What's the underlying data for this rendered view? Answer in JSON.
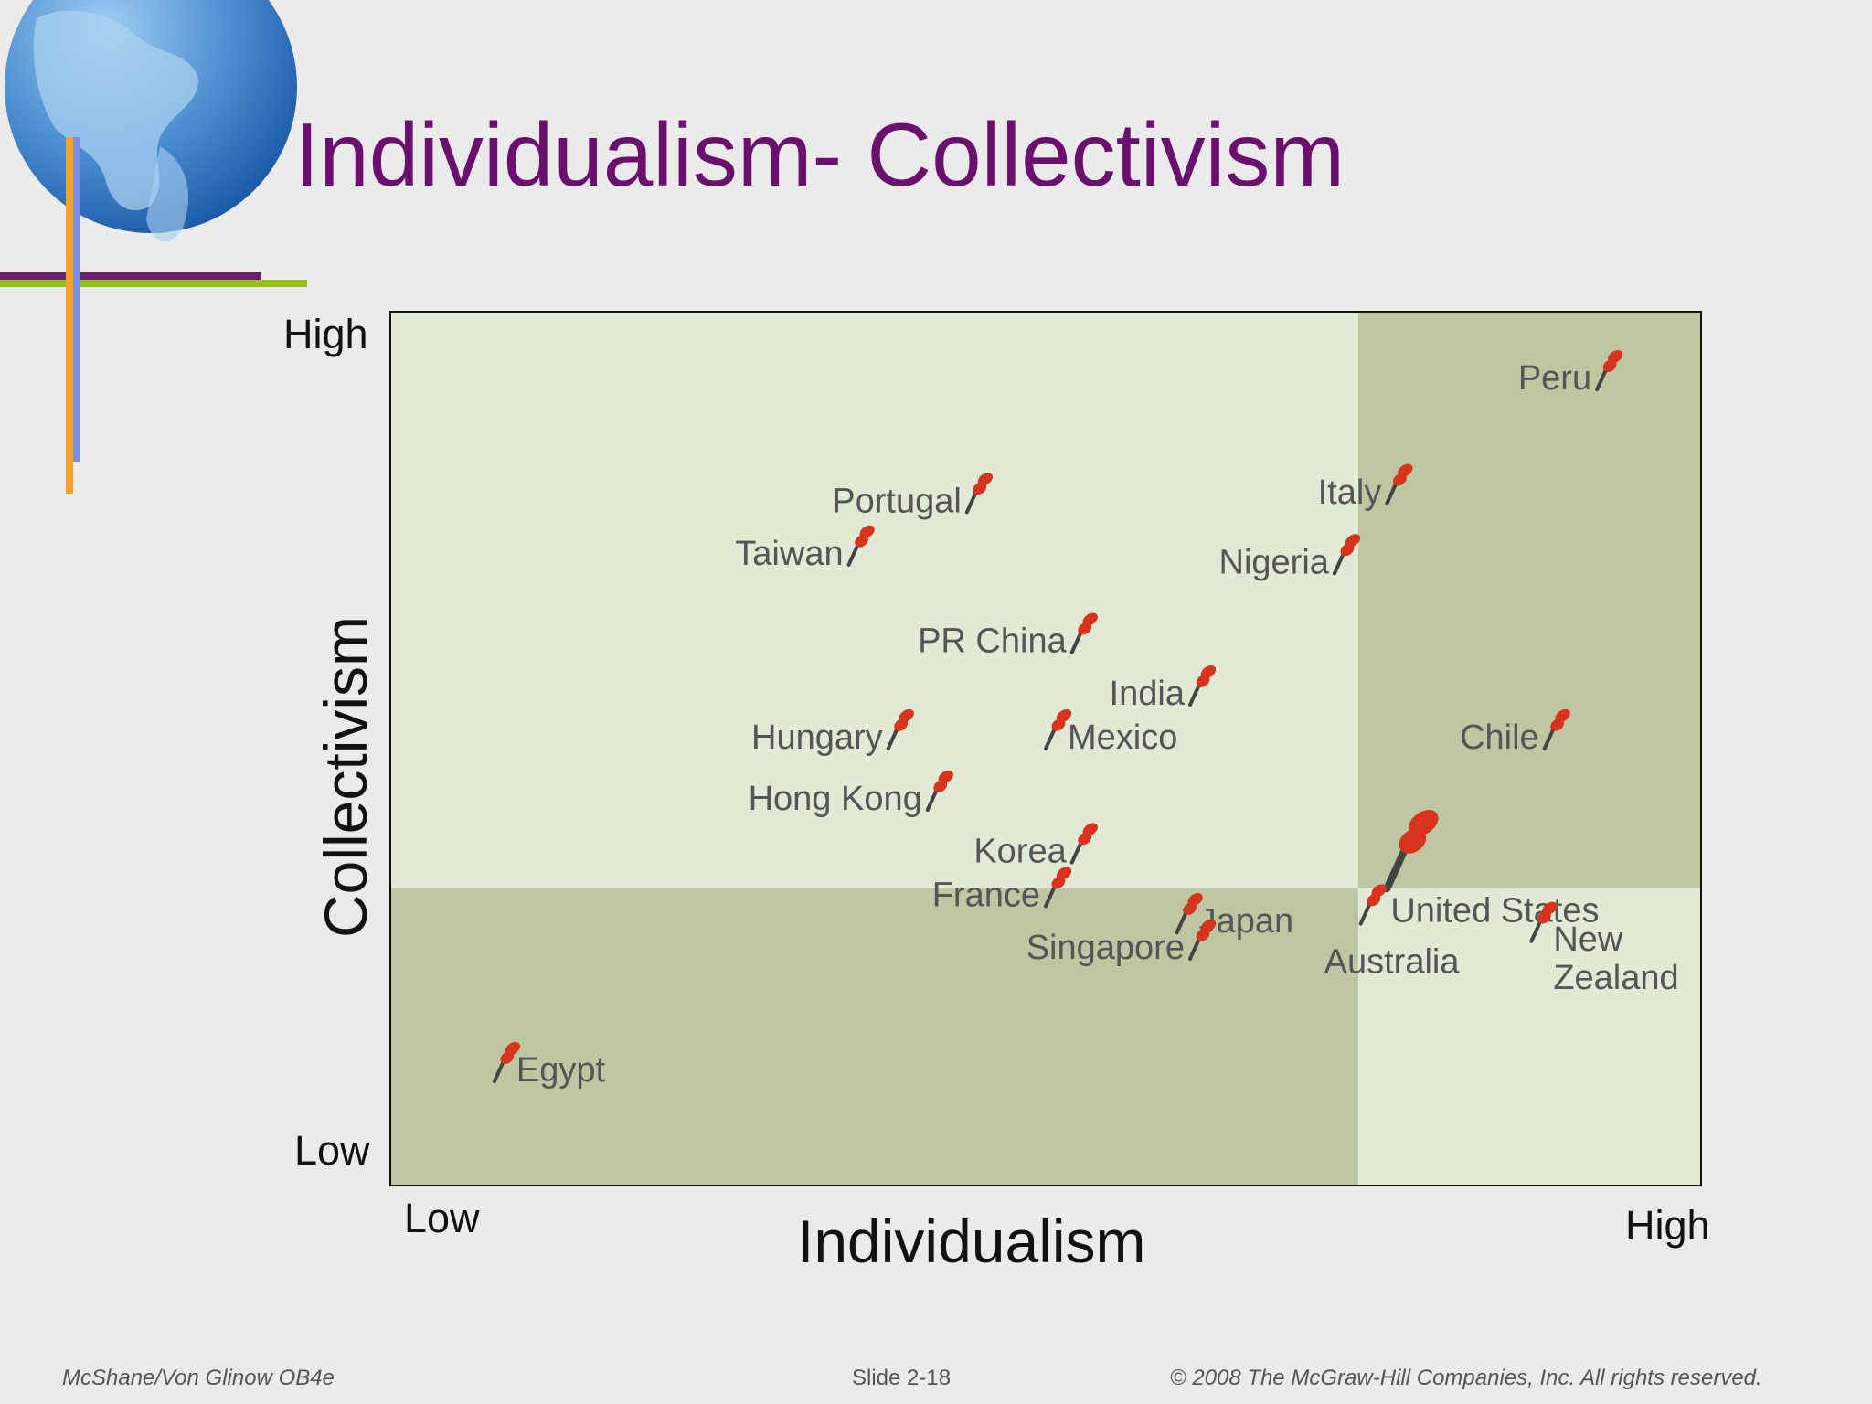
{
  "title": "Individualism- Collectivism",
  "axes": {
    "y_title": "Collectivism",
    "x_title": "Individualism",
    "y_high": "High",
    "y_low": "Low",
    "x_low": "Low",
    "x_high": "High"
  },
  "colors": {
    "title": "#6b0f6e",
    "light_quadrant": "#e2e9d4",
    "dark_quadrant": "#bfc6a2",
    "pin": "#d8331c"
  },
  "chart_data": {
    "type": "scatter",
    "x_label": "Individualism",
    "y_label": "Collectivism",
    "xlim": [
      0,
      100
    ],
    "ylim": [
      0,
      100
    ],
    "points": [
      {
        "label": "Peru",
        "x": 92,
        "y": 91,
        "label_side": "left"
      },
      {
        "label": "Italy",
        "x": 76,
        "y": 78,
        "label_side": "left"
      },
      {
        "label": "Portugal",
        "x": 44,
        "y": 77,
        "label_side": "left"
      },
      {
        "label": "Taiwan",
        "x": 35,
        "y": 71,
        "label_side": "left"
      },
      {
        "label": "Nigeria",
        "x": 72,
        "y": 70,
        "label_side": "left"
      },
      {
        "label": "PR China",
        "x": 52,
        "y": 61,
        "label_side": "left"
      },
      {
        "label": "India",
        "x": 61,
        "y": 55,
        "label_side": "left"
      },
      {
        "label": "Hungary",
        "x": 38,
        "y": 50,
        "label_side": "left"
      },
      {
        "label": "Mexico",
        "x": 50,
        "y": 50,
        "label_side": "right"
      },
      {
        "label": "Chile",
        "x": 88,
        "y": 50,
        "label_side": "left"
      },
      {
        "label": "Hong Kong",
        "x": 41,
        "y": 43,
        "label_side": "left"
      },
      {
        "label": "Korea",
        "x": 52,
        "y": 37,
        "label_side": "left"
      },
      {
        "label": "United States",
        "x": 76,
        "y": 34,
        "label_side": "right",
        "highlight": true
      },
      {
        "label": "France",
        "x": 50,
        "y": 32,
        "label_side": "left"
      },
      {
        "label": "Japan",
        "x": 60,
        "y": 29,
        "label_side": "right"
      },
      {
        "label": "Australia",
        "x": 74,
        "y": 30,
        "label_side": "below"
      },
      {
        "label": "New Zealand",
        "x": 87,
        "y": 28,
        "label_side": "right"
      },
      {
        "label": "Singapore",
        "x": 61,
        "y": 26,
        "label_side": "left"
      },
      {
        "label": "Egypt",
        "x": 8,
        "y": 12,
        "label_side": "right"
      }
    ]
  },
  "footer": {
    "left": "McShane/Von Glinow  OB4e",
    "center": "Slide 2-18",
    "right": "© 2008 The McGraw-Hill Companies, Inc. All rights reserved."
  }
}
